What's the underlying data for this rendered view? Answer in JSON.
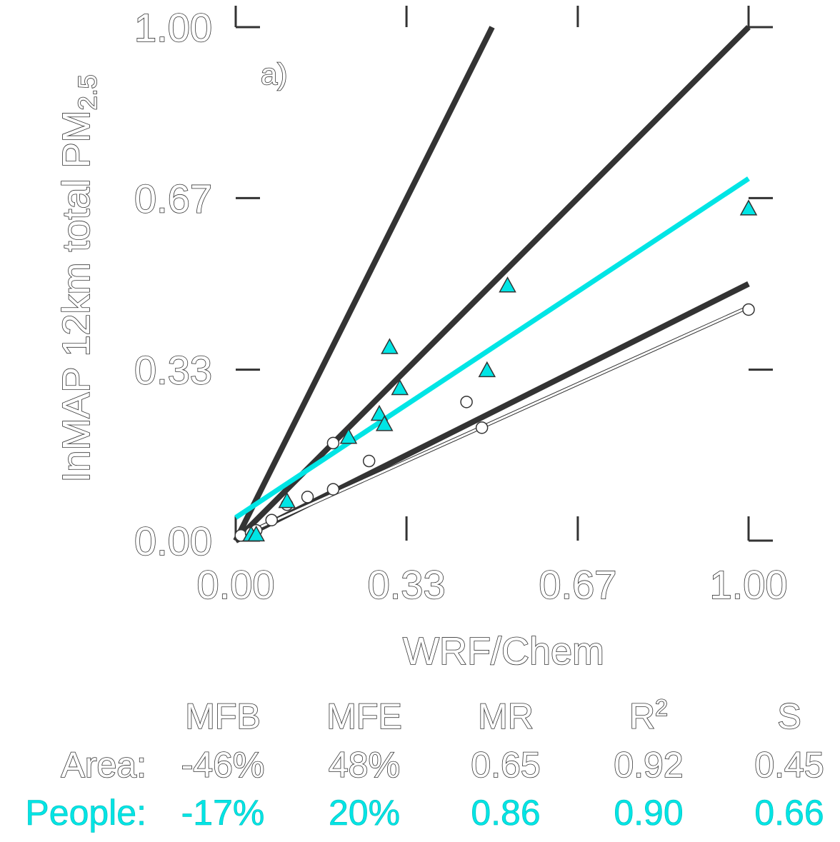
{
  "chart_data": {
    "type": "scatter",
    "panel_label": "a)",
    "xlabel": "WRF/Chem",
    "ylabel_main": "InMAP 12km total PM",
    "ylabel_sub": "2.5",
    "xlim": [
      0,
      1
    ],
    "ylim": [
      0,
      1
    ],
    "x_ticks": [
      "0.00",
      "0.33",
      "0.67",
      "1.00"
    ],
    "y_ticks": [
      "0.00",
      "0.33",
      "0.67",
      "1.00"
    ],
    "x_tick_values": [
      0,
      0.333,
      0.667,
      1.0
    ],
    "y_tick_values": [
      0,
      0.333,
      0.667,
      1.0
    ],
    "colors": {
      "area": "#ffffff",
      "people": "#00e5e5",
      "reference": "#333333"
    },
    "reference_lines": [
      {
        "x": [
          0.0,
          0.5
        ],
        "y": [
          0.0,
          1.0
        ]
      },
      {
        "x": [
          0.0,
          1.0
        ],
        "y": [
          0.0,
          1.0
        ]
      },
      {
        "x": [
          0.0,
          1.0
        ],
        "y": [
          0.0,
          0.5
        ]
      }
    ],
    "series": [
      {
        "marker": "circle",
        "color": "#ffffff",
        "points": [
          [
            0.01,
            0.01
          ],
          [
            0.03,
            0.015
          ],
          [
            0.04,
            0.02
          ],
          [
            0.07,
            0.04
          ],
          [
            0.1,
            0.07
          ],
          [
            0.14,
            0.085
          ],
          [
            0.19,
            0.1
          ],
          [
            0.19,
            0.19
          ],
          [
            0.26,
            0.155
          ],
          [
            0.45,
            0.27
          ],
          [
            0.48,
            0.22
          ],
          [
            1.0,
            0.45
          ]
        ],
        "fit": {
          "slope": 0.45,
          "intercept": 0.005
        }
      },
      {
        "marker": "triangle",
        "color": "#00e5e5",
        "points": [
          [
            0.03,
            0.01
          ],
          [
            0.04,
            0.01
          ],
          [
            0.1,
            0.075
          ],
          [
            0.22,
            0.2
          ],
          [
            0.28,
            0.245
          ],
          [
            0.29,
            0.225
          ],
          [
            0.3,
            0.375
          ],
          [
            0.32,
            0.295
          ],
          [
            0.49,
            0.33
          ],
          [
            0.53,
            0.495
          ],
          [
            1.0,
            0.645
          ]
        ],
        "fit": {
          "slope": 0.66,
          "intercept": 0.045
        }
      }
    ],
    "stats_table": {
      "headers": [
        "MFB",
        "MFE",
        "MR",
        "R",
        "S"
      ],
      "r2_sup": "2",
      "rows": [
        {
          "label": "Area:",
          "values": [
            "-46%",
            "48%",
            "0.65",
            "0.92",
            "0.45"
          ]
        },
        {
          "label": "People:",
          "values": [
            "-17%",
            "20%",
            "0.86",
            "0.90",
            "0.66"
          ]
        }
      ]
    }
  }
}
